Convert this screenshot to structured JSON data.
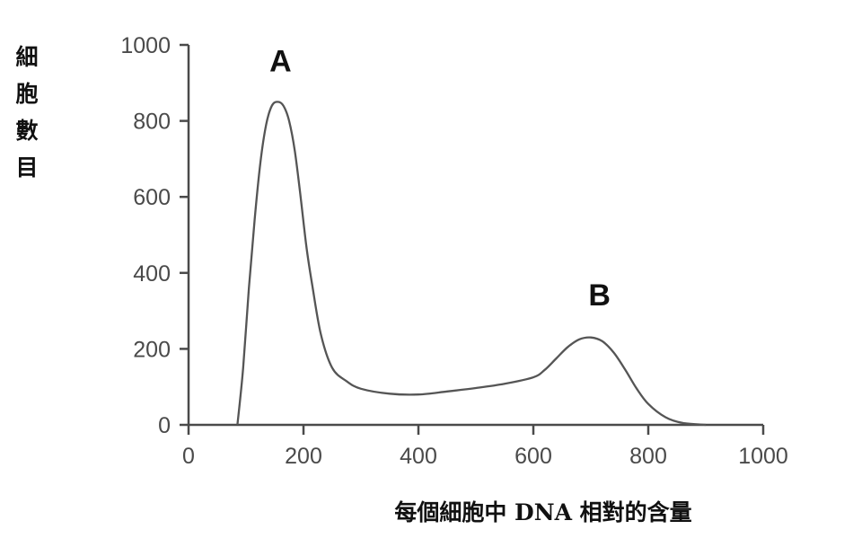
{
  "chart_data": {
    "type": "line",
    "title": "",
    "xlabel": "每個細胞中 DNA 相對的含量",
    "ylabel": "細胞數目",
    "xlim": [
      0,
      1000
    ],
    "ylim": [
      0,
      1000
    ],
    "x_ticks": [
      "0",
      "200",
      "400",
      "600",
      "800",
      "1000"
    ],
    "y_ticks": [
      "0",
      "200",
      "400",
      "600",
      "800",
      "1000"
    ],
    "grid": false,
    "legend": "none",
    "line_color": "#555555",
    "series": [
      {
        "x": [
          85,
          95,
          105,
          115,
          125,
          135,
          145,
          155,
          165,
          175,
          185,
          195,
          205,
          215,
          230,
          250,
          275,
          300,
          350,
          400,
          450,
          500,
          550,
          600,
          620,
          640,
          660,
          680,
          700,
          720,
          740,
          760,
          780,
          800,
          830,
          860,
          900
        ],
        "values": [
          0,
          150,
          360,
          540,
          690,
          790,
          840,
          850,
          840,
          800,
          720,
          600,
          470,
          370,
          240,
          150,
          115,
          95,
          82,
          80,
          88,
          97,
          108,
          125,
          145,
          175,
          205,
          225,
          230,
          220,
          190,
          145,
          95,
          55,
          20,
          5,
          0
        ]
      }
    ],
    "annotations": [
      {
        "text": "A",
        "x": 160,
        "y": 930
      },
      {
        "text": "B",
        "x": 715,
        "y": 315
      }
    ]
  }
}
